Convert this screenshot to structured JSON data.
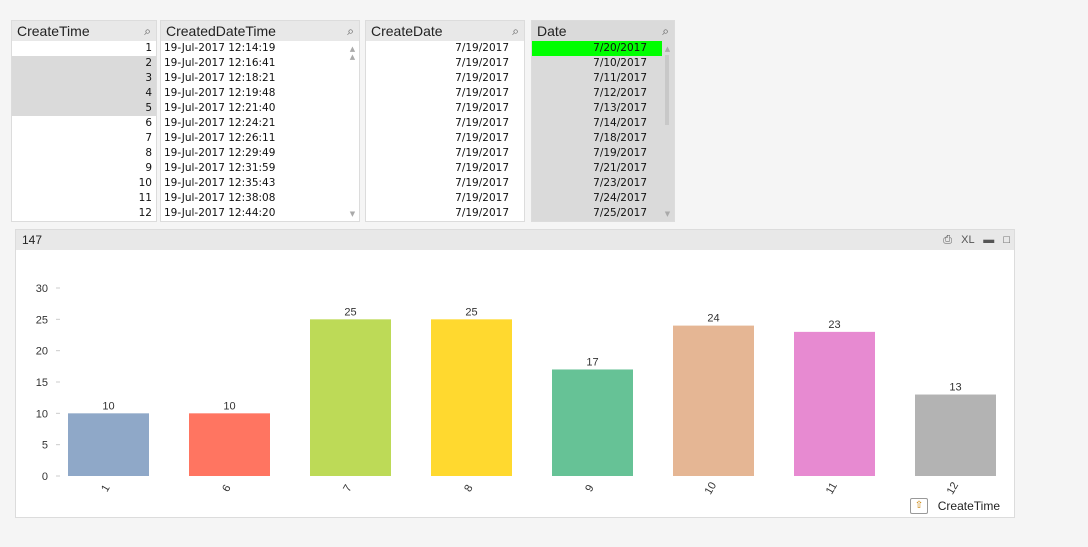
{
  "listboxes": [
    {
      "title": "CreateTime",
      "align": "num",
      "rows": [
        {
          "v": "1",
          "s": "white"
        },
        {
          "v": "2",
          "s": "gray"
        },
        {
          "v": "3",
          "s": "gray"
        },
        {
          "v": "4",
          "s": "gray"
        },
        {
          "v": "5",
          "s": "gray"
        },
        {
          "v": "6",
          "s": "white"
        },
        {
          "v": "7",
          "s": "white"
        },
        {
          "v": "8",
          "s": "white"
        },
        {
          "v": "9",
          "s": "white"
        },
        {
          "v": "10",
          "s": "white"
        },
        {
          "v": "11",
          "s": "white"
        },
        {
          "v": "12",
          "s": "white"
        }
      ]
    },
    {
      "title": "CreatedDateTime",
      "align": "txt",
      "rows": [
        {
          "v": "19-Jul-2017 12:14:19",
          "s": "white"
        },
        {
          "v": "19-Jul-2017 12:16:41",
          "s": "white"
        },
        {
          "v": "19-Jul-2017 12:18:21",
          "s": "white"
        },
        {
          "v": "19-Jul-2017 12:19:48",
          "s": "white"
        },
        {
          "v": "19-Jul-2017 12:21:40",
          "s": "white"
        },
        {
          "v": "19-Jul-2017 12:24:21",
          "s": "white"
        },
        {
          "v": "19-Jul-2017 12:26:11",
          "s": "white"
        },
        {
          "v": "19-Jul-2017 12:29:49",
          "s": "white"
        },
        {
          "v": "19-Jul-2017 12:31:59",
          "s": "white"
        },
        {
          "v": "19-Jul-2017 12:35:43",
          "s": "white"
        },
        {
          "v": "19-Jul-2017 12:38:08",
          "s": "white"
        },
        {
          "v": "19-Jul-2017 12:44:20",
          "s": "white"
        }
      ]
    },
    {
      "title": "CreateDate",
      "align": "dt",
      "rows": [
        {
          "v": "7/19/2017",
          "s": "white"
        },
        {
          "v": "7/19/2017",
          "s": "white"
        },
        {
          "v": "7/19/2017",
          "s": "white"
        },
        {
          "v": "7/19/2017",
          "s": "white"
        },
        {
          "v": "7/19/2017",
          "s": "white"
        },
        {
          "v": "7/19/2017",
          "s": "white"
        },
        {
          "v": "7/19/2017",
          "s": "white"
        },
        {
          "v": "7/19/2017",
          "s": "white"
        },
        {
          "v": "7/19/2017",
          "s": "white"
        },
        {
          "v": "7/19/2017",
          "s": "white"
        },
        {
          "v": "7/19/2017",
          "s": "white"
        },
        {
          "v": "7/19/2017",
          "s": "white"
        }
      ]
    },
    {
      "title": "Date",
      "align": "dt",
      "rows": [
        {
          "v": "7/20/2017",
          "s": "green"
        },
        {
          "v": "7/10/2017",
          "s": "gray"
        },
        {
          "v": "7/11/2017",
          "s": "gray"
        },
        {
          "v": "7/12/2017",
          "s": "gray"
        },
        {
          "v": "7/13/2017",
          "s": "gray"
        },
        {
          "v": "7/14/2017",
          "s": "gray"
        },
        {
          "v": "7/18/2017",
          "s": "gray"
        },
        {
          "v": "7/19/2017",
          "s": "gray"
        },
        {
          "v": "7/21/2017",
          "s": "gray"
        },
        {
          "v": "7/23/2017",
          "s": "gray"
        },
        {
          "v": "7/24/2017",
          "s": "gray"
        },
        {
          "v": "7/25/2017",
          "s": "gray"
        }
      ]
    }
  ],
  "icons": {
    "search": "magnifier-icon",
    "print": "print-icon",
    "xl": "XL",
    "minimize": "minimize-icon",
    "maximize": "maximize-icon",
    "cycle": "cyclic-group-icon"
  },
  "chart_title": "147",
  "dimension_label": "CreateTime",
  "colors": {
    "selected": "#00ff00",
    "possible_gray": "#dadada",
    "header": "#e8e8e8"
  },
  "chart_data": {
    "type": "bar",
    "categories": [
      "1",
      "6",
      "7",
      "8",
      "9",
      "10",
      "11",
      "12"
    ],
    "values": [
      10,
      10,
      25,
      25,
      17,
      24,
      23,
      13
    ],
    "colors": [
      "#8fa8c8",
      "#ff7561",
      "#bdda57",
      "#ffd92f",
      "#66c296",
      "#e5b694",
      "#e78ad1",
      "#b3b3b3"
    ],
    "yticks": [
      0,
      5,
      10,
      15,
      20,
      25,
      30
    ],
    "ylim": [
      0,
      30
    ],
    "xlabel": "CreateTime",
    "ylabel": "",
    "grid": false,
    "data_labels": true
  }
}
